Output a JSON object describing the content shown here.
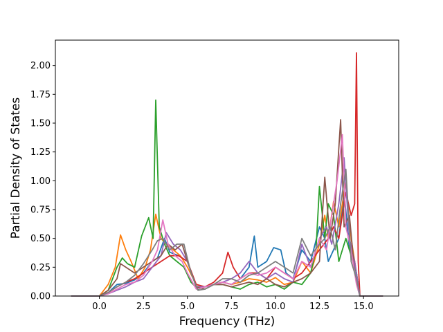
{
  "chart_data": {
    "type": "line",
    "title": "",
    "xlabel": "Frequency (THz)",
    "ylabel": "Partial Density of States",
    "xlim": [
      -2.5,
      17.0
    ],
    "ylim": [
      0.0,
      2.22
    ],
    "xticks": [
      0.0,
      2.5,
      5.0,
      7.5,
      10.0,
      12.5,
      15.0
    ],
    "xtick_labels": [
      "0.0",
      "2.5",
      "5.0",
      "7.5",
      "10.0",
      "12.5",
      "15.0"
    ],
    "yticks": [
      0.0,
      0.25,
      0.5,
      0.75,
      1.0,
      1.25,
      1.5,
      1.75,
      2.0
    ],
    "ytick_labels": [
      "0.00",
      "0.25",
      "0.50",
      "0.75",
      "1.00",
      "1.25",
      "1.50",
      "1.75",
      "2.00"
    ],
    "grid": false,
    "legend": "none",
    "series": [
      {
        "color": "#1f77b4",
        "x": [
          -1.6,
          0,
          0.5,
          1,
          1.5,
          2,
          2.5,
          3,
          3.3,
          3.7,
          4,
          4.5,
          5,
          5.5,
          6,
          6.5,
          7,
          7.5,
          8,
          8.5,
          8.8,
          9,
          9.5,
          9.9,
          10.3,
          10.6,
          11,
          11.5,
          12,
          12.5,
          12.8,
          13,
          13.3,
          13.6,
          13.9,
          14.2,
          14.5,
          14.7,
          14.8,
          16.1
        ],
        "y": [
          0,
          0,
          0.03,
          0.1,
          0.11,
          0.14,
          0.2,
          0.3,
          0.33,
          0.5,
          0.38,
          0.35,
          0.3,
          0.08,
          0.08,
          0.1,
          0.12,
          0.1,
          0.15,
          0.25,
          0.52,
          0.25,
          0.3,
          0.42,
          0.4,
          0.2,
          0.15,
          0.4,
          0.3,
          0.6,
          0.5,
          0.3,
          0.4,
          0.5,
          0.9,
          0.4,
          0.3,
          0.05,
          0,
          0
        ]
      },
      {
        "color": "#ff7f0e",
        "x": [
          -1.6,
          0,
          0.5,
          0.9,
          1.2,
          1.5,
          1.8,
          2.2,
          2.6,
          2.9,
          3.2,
          3.5,
          3.8,
          4.2,
          4.6,
          5,
          5.5,
          6,
          6.5,
          7,
          7.5,
          8,
          8.5,
          9,
          9.5,
          10,
          10.5,
          11,
          11.5,
          12,
          12.5,
          12.8,
          13,
          13.3,
          13.6,
          14,
          14.3,
          14.6,
          14.8,
          16.1
        ],
        "y": [
          0,
          0,
          0.1,
          0.25,
          0.53,
          0.4,
          0.3,
          0.15,
          0.25,
          0.4,
          0.71,
          0.5,
          0.45,
          0.4,
          0.35,
          0.25,
          0.1,
          0.08,
          0.1,
          0.12,
          0.1,
          0.12,
          0.15,
          0.14,
          0.12,
          0.16,
          0.1,
          0.12,
          0.3,
          0.2,
          0.45,
          0.7,
          0.5,
          0.82,
          0.6,
          1.0,
          0.5,
          0.2,
          0,
          0
        ]
      },
      {
        "color": "#2ca02c",
        "x": [
          -1.6,
          0,
          0.5,
          1,
          1.3,
          1.6,
          2,
          2.4,
          2.8,
          3.05,
          3.2,
          3.4,
          3.7,
          4,
          4.4,
          4.8,
          5.2,
          5.6,
          6,
          6.5,
          7,
          7.5,
          8,
          8.5,
          9,
          9.5,
          10,
          10.5,
          11,
          11.5,
          12,
          12.3,
          12.5,
          12.8,
          13,
          13.3,
          13.6,
          14,
          14.3,
          14.6,
          14.8,
          16.1
        ],
        "y": [
          0,
          0,
          0.05,
          0.25,
          0.33,
          0.28,
          0.25,
          0.52,
          0.68,
          0.5,
          1.7,
          0.6,
          0.45,
          0.35,
          0.3,
          0.25,
          0.12,
          0.06,
          0.08,
          0.1,
          0.1,
          0.08,
          0.06,
          0.1,
          0.12,
          0.08,
          0.1,
          0.06,
          0.12,
          0.1,
          0.2,
          0.4,
          0.95,
          0.5,
          0.8,
          0.7,
          0.3,
          0.5,
          0.35,
          0.2,
          0,
          0
        ]
      },
      {
        "color": "#d62728",
        "x": [
          -1.6,
          0,
          0.5,
          1,
          1.5,
          2,
          2.5,
          3,
          3.5,
          4,
          4.5,
          5,
          5.5,
          6,
          6.5,
          7,
          7.3,
          7.6,
          8,
          8.5,
          9,
          9.5,
          10,
          10.5,
          11,
          11.5,
          12,
          12.5,
          13,
          13.3,
          13.6,
          14,
          14.3,
          14.5,
          14.6,
          14.7,
          14.8,
          16.1
        ],
        "y": [
          0,
          0,
          0.03,
          0.08,
          0.12,
          0.15,
          0.2,
          0.25,
          0.3,
          0.35,
          0.35,
          0.3,
          0.1,
          0.08,
          0.12,
          0.2,
          0.38,
          0.25,
          0.15,
          0.2,
          0.2,
          0.15,
          0.25,
          0.2,
          0.15,
          0.2,
          0.3,
          0.4,
          0.5,
          0.6,
          0.5,
          0.9,
          0.7,
          0.8,
          2.11,
          0.3,
          0,
          0
        ]
      },
      {
        "color": "#9467bd",
        "x": [
          -1.6,
          0,
          0.5,
          1,
          1.5,
          2,
          2.5,
          3,
          3.5,
          3.8,
          4.2,
          4.6,
          5,
          5.5,
          6,
          6.5,
          7,
          7.5,
          8,
          8.5,
          9,
          9.5,
          10,
          10.5,
          11,
          11.5,
          12,
          12.5,
          12.9,
          13.2,
          13.6,
          13.9,
          14.2,
          14.5,
          14.8,
          16.1
        ],
        "y": [
          0,
          0,
          0.02,
          0.05,
          0.08,
          0.12,
          0.15,
          0.25,
          0.35,
          0.55,
          0.45,
          0.4,
          0.3,
          0.08,
          0.08,
          0.1,
          0.12,
          0.15,
          0.2,
          0.3,
          0.2,
          0.15,
          0.2,
          0.15,
          0.12,
          0.45,
          0.25,
          0.5,
          0.6,
          0.45,
          0.8,
          1.2,
          0.5,
          0.3,
          0,
          0
        ]
      },
      {
        "color": "#8c564b",
        "x": [
          -1.6,
          0,
          0.5,
          1,
          1.2,
          1.5,
          2,
          2.5,
          3,
          3.5,
          3.9,
          4.3,
          4.7,
          5,
          5.5,
          6,
          6.5,
          7,
          7.5,
          8,
          8.5,
          9,
          9.5,
          10,
          10.5,
          11,
          11.5,
          12,
          12.5,
          12.8,
          13.1,
          13.4,
          13.7,
          13.9,
          14.2,
          14.5,
          14.8,
          16.1
        ],
        "y": [
          0,
          0,
          0.05,
          0.15,
          0.28,
          0.25,
          0.2,
          0.25,
          0.3,
          0.35,
          0.45,
          0.4,
          0.45,
          0.3,
          0.08,
          0.06,
          0.1,
          0.1,
          0.08,
          0.1,
          0.12,
          0.1,
          0.15,
          0.1,
          0.08,
          0.12,
          0.15,
          0.2,
          0.3,
          1.03,
          0.5,
          0.8,
          1.53,
          0.6,
          0.7,
          0.2,
          0,
          0
        ]
      },
      {
        "color": "#e377c2",
        "x": [
          -1.6,
          0,
          0.5,
          1,
          1.5,
          2,
          2.5,
          3,
          3.3,
          3.6,
          3.9,
          4.3,
          4.7,
          5,
          5.5,
          6,
          6.5,
          7,
          7.5,
          8,
          8.5,
          9,
          9.5,
          10,
          10.5,
          11,
          11.5,
          12,
          12.5,
          12.9,
          13.2,
          13.5,
          13.8,
          14,
          14.3,
          14.6,
          14.8,
          16.1
        ],
        "y": [
          0,
          0,
          0.02,
          0.06,
          0.1,
          0.12,
          0.18,
          0.3,
          0.4,
          0.66,
          0.45,
          0.35,
          0.3,
          0.2,
          0.06,
          0.08,
          0.1,
          0.12,
          0.1,
          0.15,
          0.2,
          0.18,
          0.2,
          0.25,
          0.2,
          0.15,
          0.3,
          0.25,
          0.5,
          0.4,
          0.7,
          1.0,
          1.4,
          0.6,
          0.4,
          0.1,
          0,
          0
        ]
      },
      {
        "color": "#7f7f7f",
        "x": [
          -1.6,
          0,
          0.5,
          1,
          1.5,
          2,
          2.5,
          3,
          3.3,
          3.6,
          4,
          4.4,
          4.8,
          5.2,
          5.6,
          6,
          6.5,
          7,
          7.5,
          8,
          8.5,
          9,
          9.5,
          10,
          10.5,
          11,
          11.5,
          12,
          12.5,
          12.8,
          13.1,
          13.4,
          13.7,
          14,
          14.3,
          14.6,
          14.8,
          16.1
        ],
        "y": [
          0,
          0,
          0.03,
          0.08,
          0.12,
          0.18,
          0.28,
          0.4,
          0.48,
          0.5,
          0.4,
          0.45,
          0.45,
          0.2,
          0.05,
          0.06,
          0.1,
          0.15,
          0.15,
          0.12,
          0.18,
          0.2,
          0.25,
          0.3,
          0.25,
          0.2,
          0.5,
          0.35,
          0.45,
          0.5,
          0.6,
          0.4,
          0.8,
          1.1,
          0.3,
          0.15,
          0,
          0
        ]
      }
    ]
  }
}
